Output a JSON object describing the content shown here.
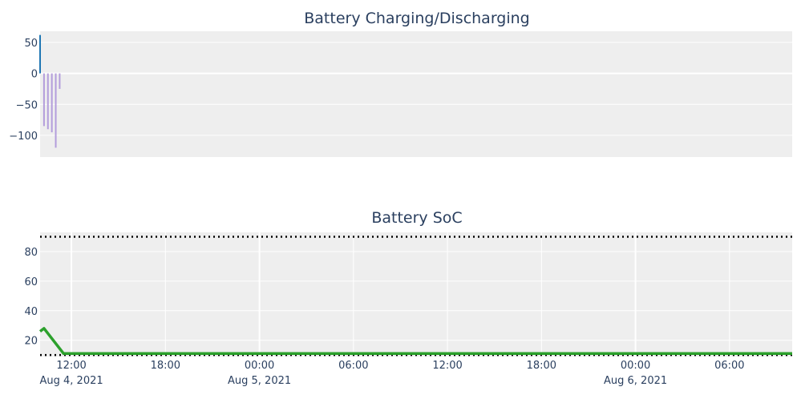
{
  "chart_data": [
    {
      "type": "bar",
      "title": "Battery Charging/Discharging",
      "xlabel": "",
      "ylabel": "",
      "y_ticks": [
        50,
        0,
        -50,
        -100
      ],
      "ylim": [
        -135,
        68
      ],
      "grid": true,
      "x_start": "2021-08-04 10:00",
      "x_end": "2021-08-06 10:00",
      "series": [
        {
          "color": "#1f77b4",
          "x": [
            "2021-08-04 10:00"
          ],
          "values": [
            62
          ]
        },
        {
          "color": "#b39ddb",
          "x": [
            "2021-08-04 10:15",
            "2021-08-04 10:30",
            "2021-08-04 10:45",
            "2021-08-04 11:00",
            "2021-08-04 11:15"
          ],
          "values": [
            -85,
            -90,
            -95,
            -120,
            -25
          ]
        }
      ]
    },
    {
      "type": "line",
      "title": "Battery SoC",
      "xlabel": "",
      "ylabel": "",
      "y_ticks": [
        80,
        60,
        40,
        20
      ],
      "ylim": [
        9,
        93
      ],
      "grid": true,
      "x_start": "2021-08-04 10:00",
      "x_end": "2021-08-06 10:00",
      "x_ticks": [
        {
          "t": "2021-08-04 12:00",
          "label": "12:00",
          "date": "Aug 4, 2021"
        },
        {
          "t": "2021-08-04 18:00",
          "label": "18:00",
          "date": ""
        },
        {
          "t": "2021-08-05 00:00",
          "label": "00:00",
          "date": "Aug 5, 2021"
        },
        {
          "t": "2021-08-05 06:00",
          "label": "06:00",
          "date": ""
        },
        {
          "t": "2021-08-05 12:00",
          "label": "12:00",
          "date": ""
        },
        {
          "t": "2021-08-05 18:00",
          "label": "18:00",
          "date": ""
        },
        {
          "t": "2021-08-06 00:00",
          "label": "00:00",
          "date": "Aug 6, 2021"
        },
        {
          "t": "2021-08-06 06:00",
          "label": "06:00",
          "date": ""
        }
      ],
      "reference_lines": [
        {
          "y": 90,
          "style": "dotted",
          "color": "#000000"
        },
        {
          "y": 10,
          "style": "dotted",
          "color": "#000000"
        }
      ],
      "series": [
        {
          "color": "#2ca02c",
          "x": [
            "2021-08-04 10:00",
            "2021-08-04 10:15",
            "2021-08-04 11:30",
            "2021-08-06 10:00"
          ],
          "values": [
            26,
            28,
            11,
            11
          ]
        }
      ]
    }
  ]
}
